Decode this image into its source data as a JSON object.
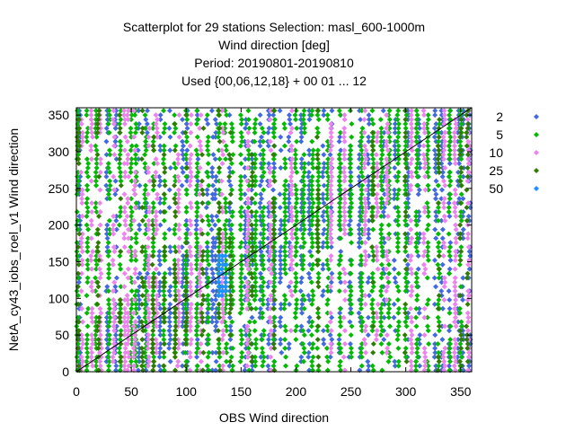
{
  "chart_data": {
    "type": "scatter",
    "title_lines": [
      "Scatterplot for   29 stations Selection: masl_600-1000m",
      "Wind direction [deg]",
      "Period: 20190801-20190810",
      "Used {00,06,12,18} + 00 01 ... 12"
    ],
    "xlabel": "OBS Wind direction",
    "ylabel": "NetA_cy43_iobs_roel_v1 Wind direction",
    "xlim": [
      0,
      360
    ],
    "ylim": [
      0,
      360
    ],
    "xticks": [
      "0",
      "50",
      "100",
      "150",
      "200",
      "250",
      "300",
      "350"
    ],
    "yticks": [
      "0",
      "50",
      "100",
      "150",
      "200",
      "250",
      "300",
      "350"
    ],
    "grid": false,
    "diagonal_line": true,
    "legend_placement": "right",
    "legend": [
      {
        "label": "2",
        "color": "#4169e1"
      },
      {
        "label": "5",
        "color": "#00bb00"
      },
      {
        "label": "10",
        "color": "#ee82ee"
      },
      {
        "label": "25",
        "color": "#2e7d00"
      },
      {
        "label": "50",
        "color": "#1e90ff"
      }
    ],
    "density_classes": [
      {
        "name": "2",
        "color": "#4169e1",
        "x_columns": [
          3,
          28,
          36,
          57,
          64,
          76,
          85,
          97,
          101,
          110,
          119,
          124,
          127,
          140,
          154,
          160,
          168,
          175,
          180,
          186,
          194,
          205,
          212,
          225,
          232,
          240,
          249,
          258,
          266,
          280,
          290,
          302,
          312,
          327,
          333,
          340,
          348,
          352,
          358
        ],
        "density": 0.4
      },
      {
        "name": "5",
        "color": "#00bb00",
        "x_columns": [
          1,
          10,
          18,
          30,
          40,
          50,
          54,
          63,
          70,
          80,
          90,
          100,
          110,
          120,
          130,
          136,
          142,
          150,
          157,
          163,
          170,
          180,
          190,
          200,
          207,
          215,
          220,
          229,
          240,
          250,
          260,
          270,
          278,
          285,
          293,
          300,
          310,
          320,
          330,
          340,
          350
        ],
        "density": 0.55
      },
      {
        "name": "10",
        "color": "#ee82ee",
        "x_columns": [
          5,
          14,
          22,
          34,
          44,
          47,
          53,
          66,
          73,
          93,
          104,
          113,
          133,
          156,
          177,
          196,
          232,
          244,
          263,
          274,
          283,
          305,
          317,
          335,
          345,
          357
        ],
        "density": 0.45
      },
      {
        "name": "25",
        "color": "#2e7d00",
        "x_columns": [
          2,
          20,
          40,
          60,
          70,
          80,
          90,
          100,
          115,
          130,
          140,
          160,
          180,
          220,
          270,
          300,
          330,
          350,
          356
        ],
        "density": 0.25
      },
      {
        "name": "50",
        "color": "#1e90ff",
        "x_columns": [
          130,
          133,
          136
        ],
        "density": 0.05
      }
    ]
  }
}
